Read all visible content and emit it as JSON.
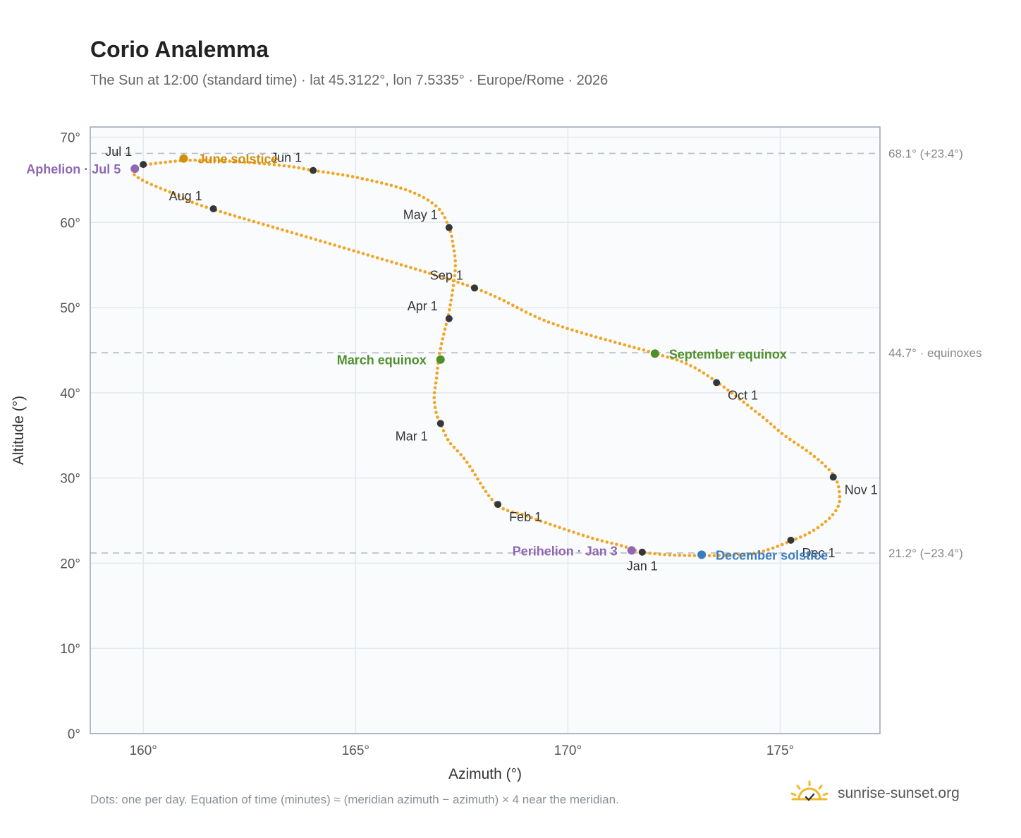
{
  "title": "Corio Analemma",
  "subtitle": "The Sun at 12:00 (standard time) · lat 45.3122°, lon 7.5335° · Europe/Rome · 2026",
  "footnote": "Dots: one per day. Equation of time (minutes) ≈ (meridian azimuth − azimuth) × 4 near the meridian.",
  "brand": {
    "name": "sunrise-sunset.org",
    "icon": "sun-icon",
    "color": "#f0b82a"
  },
  "chart_data": {
    "type": "scatter",
    "xlabel": "Azimuth (°)",
    "ylabel": "Altitude (°)",
    "xlim": [
      158.75,
      177.35
    ],
    "ylim": [
      0,
      71.2
    ],
    "xticks": [
      160,
      165,
      170,
      175
    ],
    "yticks": [
      0,
      10,
      20,
      30,
      40,
      50,
      60,
      70
    ],
    "tick_suffix": "°",
    "grid": true,
    "colors": {
      "path": "#f2a524",
      "month": "#33363b",
      "june": "#d18e0c",
      "december": "#3a7dbf",
      "equinox": "#4f8f2a",
      "apsis": "#8f67b3",
      "ref_line": "#b7bfc8"
    },
    "analemma_path": [
      [
        171.7,
        21.3
      ],
      [
        172.3,
        21.0
      ],
      [
        172.9,
        20.9
      ],
      [
        173.5,
        20.9
      ],
      [
        174.1,
        21.0
      ],
      [
        174.6,
        21.4
      ],
      [
        175.2,
        22.5
      ],
      [
        175.7,
        23.6
      ],
      [
        176.1,
        25.0
      ],
      [
        176.35,
        26.5
      ],
      [
        176.4,
        28.0
      ],
      [
        176.3,
        30.0
      ],
      [
        176.0,
        31.7
      ],
      [
        175.6,
        33.3
      ],
      [
        175.1,
        35.0
      ],
      [
        174.5,
        37.5
      ],
      [
        173.5,
        41.3
      ],
      [
        172.8,
        43.4
      ],
      [
        172.0,
        44.7
      ],
      [
        169.6,
        48.2
      ],
      [
        167.8,
        52.3
      ],
      [
        164.8,
        56.9
      ],
      [
        161.6,
        61.6
      ],
      [
        160.8,
        63.2
      ],
      [
        160.0,
        64.9
      ],
      [
        159.75,
        65.9
      ],
      [
        159.9,
        66.6
      ],
      [
        160.6,
        67.1
      ],
      [
        161.3,
        67.3
      ],
      [
        162.3,
        67.1
      ],
      [
        163.4,
        66.6
      ],
      [
        164.0,
        66.1
      ],
      [
        165.0,
        65.3
      ],
      [
        166.2,
        63.8
      ],
      [
        166.9,
        61.9
      ],
      [
        167.2,
        59.4
      ],
      [
        167.3,
        57.2
      ],
      [
        167.35,
        55.0
      ],
      [
        167.3,
        52.5
      ],
      [
        167.2,
        49.5
      ],
      [
        167.1,
        47.4
      ],
      [
        167.0,
        45.2
      ],
      [
        166.95,
        43.8
      ],
      [
        166.9,
        41.5
      ],
      [
        166.85,
        39.5
      ],
      [
        166.9,
        37.6
      ],
      [
        167.0,
        36.4
      ],
      [
        167.2,
        34.3
      ],
      [
        167.6,
        32.0
      ],
      [
        168.3,
        27.0
      ],
      [
        169.0,
        25.6
      ],
      [
        169.8,
        24.2
      ],
      [
        170.6,
        22.9
      ],
      [
        171.3,
        22.0
      ],
      [
        171.7,
        21.3
      ]
    ],
    "month_points": [
      {
        "label": "Jan 1",
        "az": 171.75,
        "alt": 21.3,
        "pos": "below"
      },
      {
        "label": "Feb 1",
        "az": 168.35,
        "alt": 26.9,
        "pos": "below-right"
      },
      {
        "label": "Mar 1",
        "az": 167.0,
        "alt": 36.4,
        "pos": "below-left"
      },
      {
        "label": "Apr 1",
        "az": 167.2,
        "alt": 48.7,
        "pos": "above-left"
      },
      {
        "label": "May 1",
        "az": 167.2,
        "alt": 59.4,
        "pos": "above-left"
      },
      {
        "label": "Jun 1",
        "az": 164.0,
        "alt": 66.1,
        "pos": "above-left"
      },
      {
        "label": "Jul 1",
        "az": 160.0,
        "alt": 66.8,
        "pos": "above-left"
      },
      {
        "label": "Aug 1",
        "az": 161.65,
        "alt": 61.6,
        "pos": "above-left"
      },
      {
        "label": "Sep 1",
        "az": 167.8,
        "alt": 52.3,
        "pos": "above-left"
      },
      {
        "label": "Oct 1",
        "az": 173.5,
        "alt": 41.2,
        "pos": "below-right"
      },
      {
        "label": "Nov 1",
        "az": 176.25,
        "alt": 30.1,
        "pos": "below-right"
      },
      {
        "label": "Dec 1",
        "az": 175.25,
        "alt": 22.7,
        "pos": "below-right"
      }
    ],
    "events": [
      {
        "label": "June solstice",
        "az": 160.95,
        "alt": 67.5,
        "color": "#d18e0c",
        "pos": "right"
      },
      {
        "label": "December solstice",
        "az": 173.15,
        "alt": 21.0,
        "color": "#3a7dbf",
        "pos": "right"
      },
      {
        "label": "March equinox",
        "az": 167.0,
        "alt": 43.9,
        "color": "#4f8f2a",
        "pos": "left"
      },
      {
        "label": "September equinox",
        "az": 172.05,
        "alt": 44.6,
        "color": "#4f8f2a",
        "pos": "right"
      },
      {
        "label": "Aphelion · Jul 5",
        "az": 159.8,
        "alt": 66.3,
        "color": "#8f67b3",
        "pos": "left"
      },
      {
        "label": "Perihelion · Jan 3",
        "az": 171.5,
        "alt": 21.5,
        "color": "#8f67b3",
        "pos": "left"
      }
    ],
    "reference_lines": [
      {
        "alt": 68.1,
        "label": "68.1° (+23.4°)"
      },
      {
        "alt": 44.7,
        "label": "44.7° · equinoxes"
      },
      {
        "alt": 21.2,
        "label": "21.2° (−23.4°)"
      }
    ]
  }
}
